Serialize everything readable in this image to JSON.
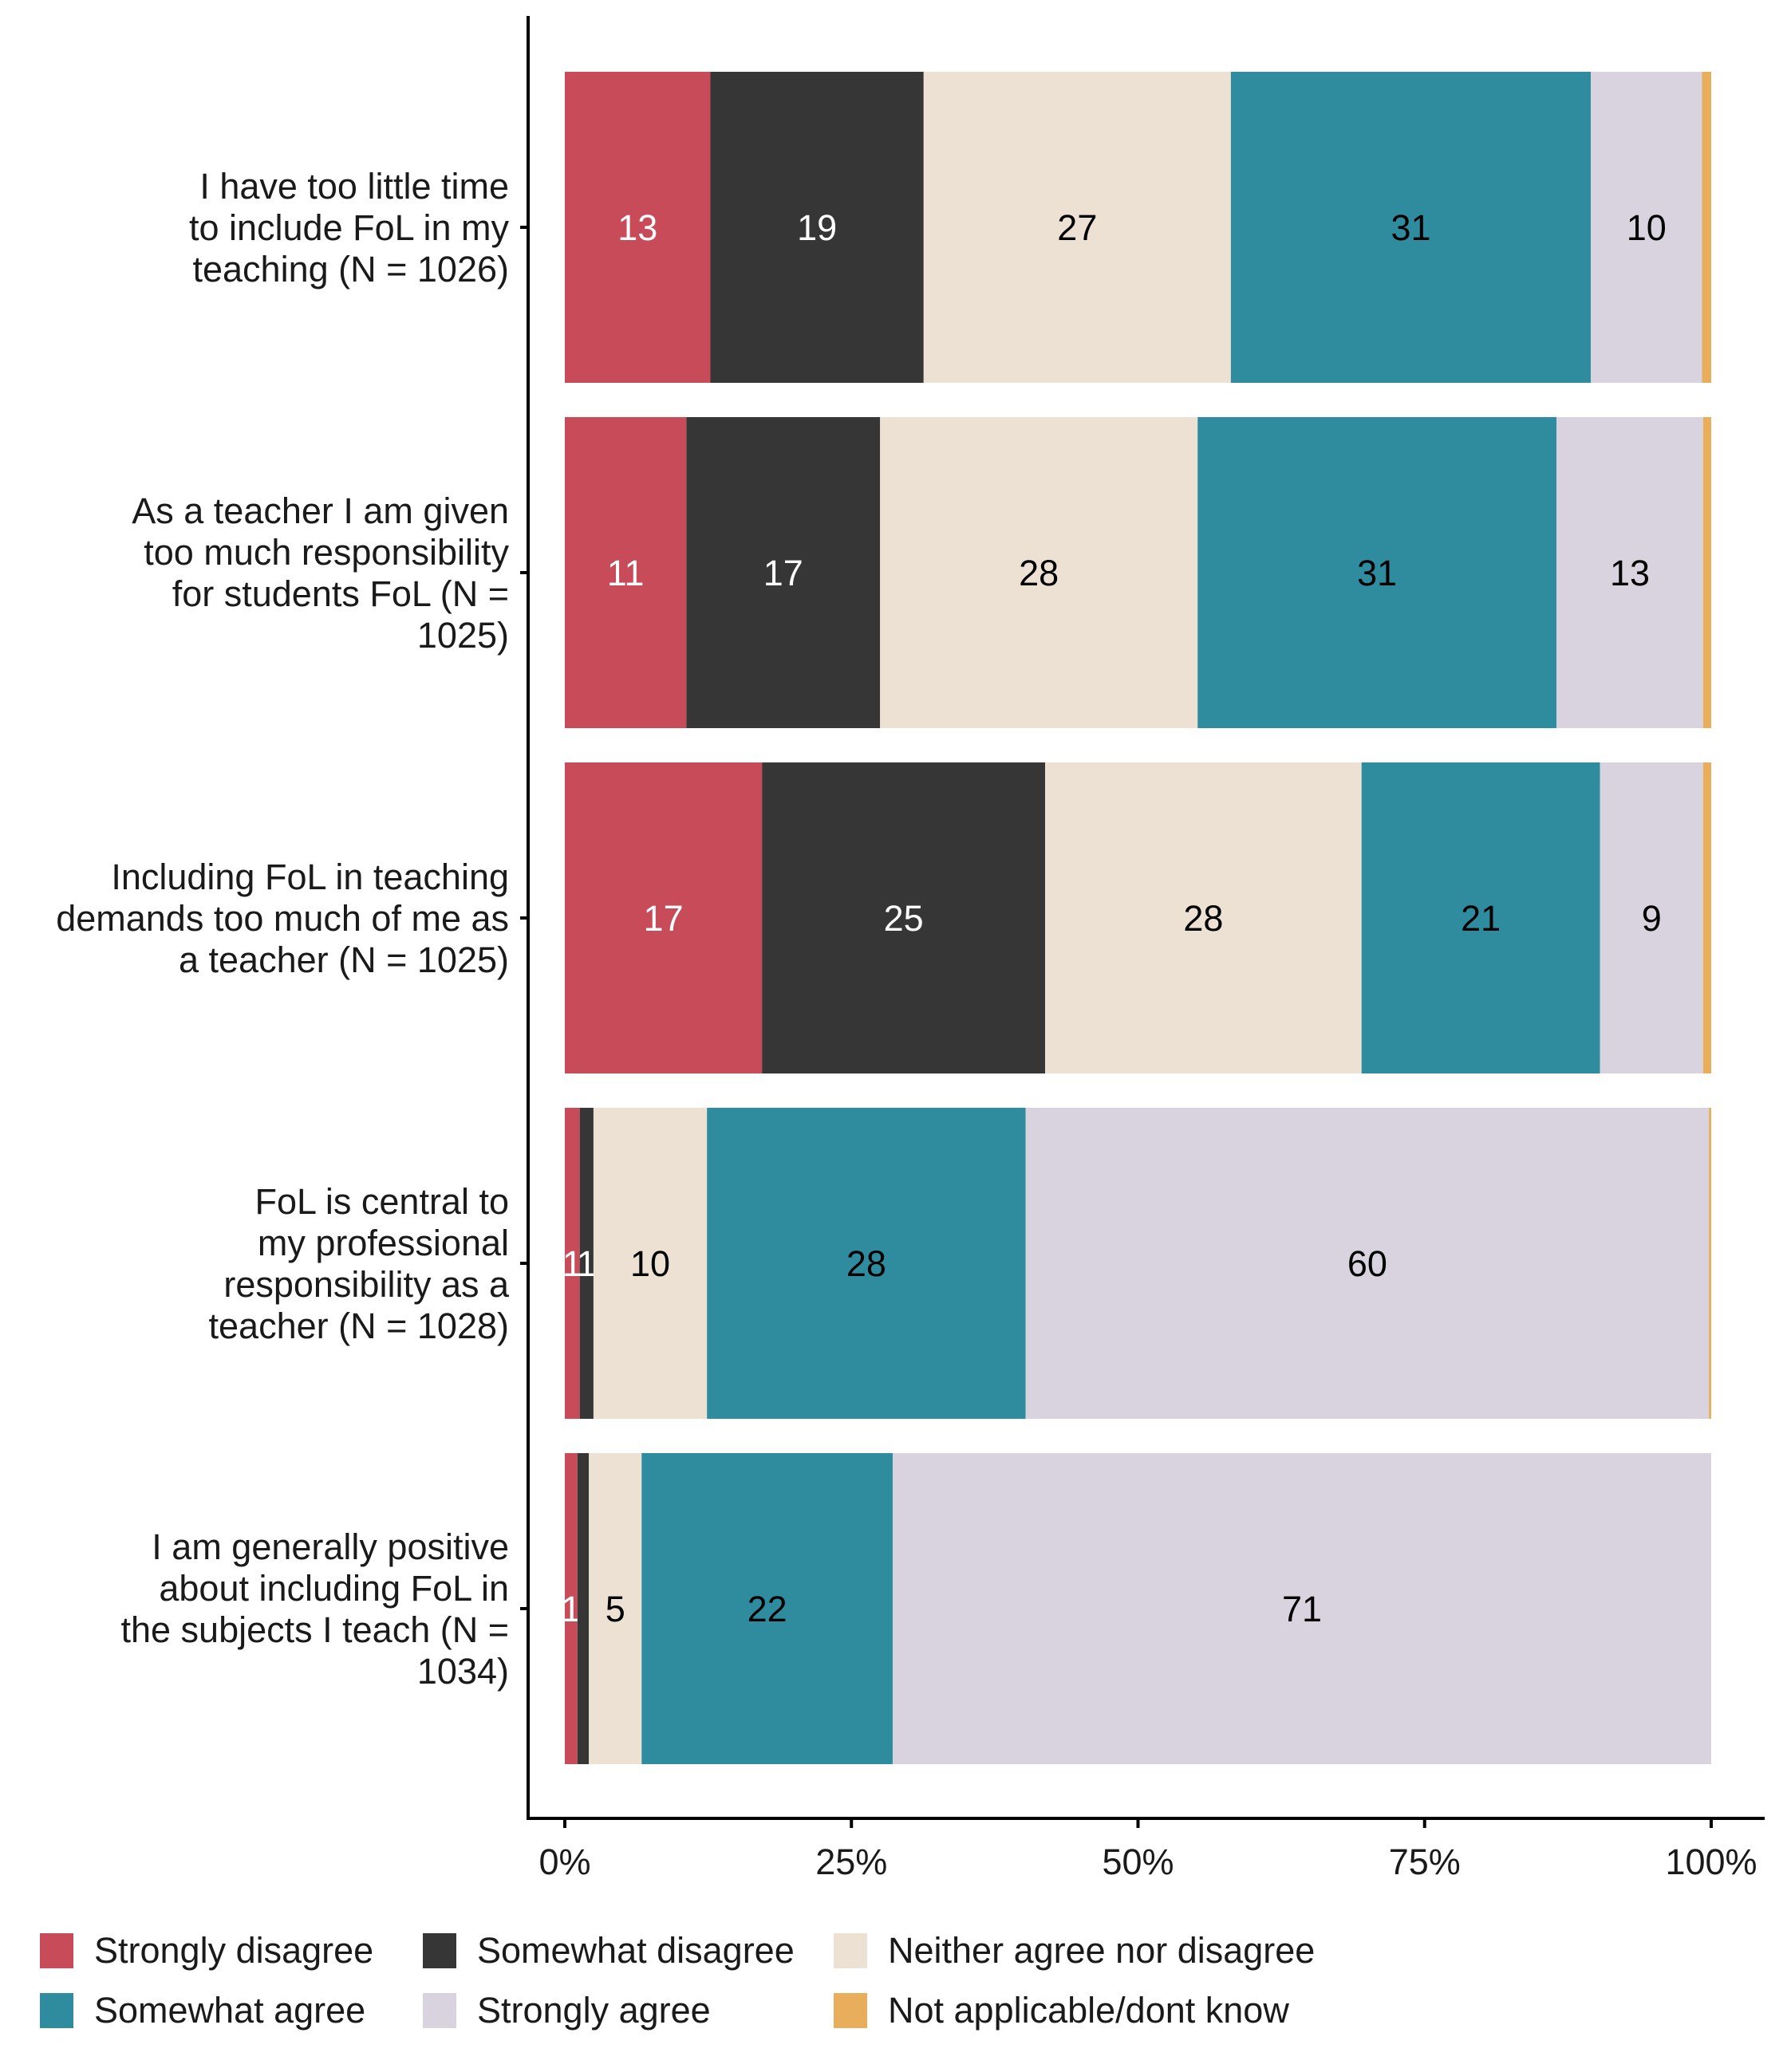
{
  "chart_data": {
    "type": "bar",
    "orientation": "horizontal",
    "stacked": true,
    "title": "",
    "xlabel": "",
    "ylabel": "",
    "xlim": [
      0,
      100
    ],
    "x_ticks": [
      "0%",
      "25%",
      "50%",
      "75%",
      "100%"
    ],
    "x_tick_values": [
      0,
      25,
      50,
      75,
      100
    ],
    "grid": false,
    "legend_position": "bottom",
    "categories": [
      [
        "I have too little time",
        "to include FoL in my",
        "teaching (N = 1026)"
      ],
      [
        "As a teacher I am given",
        "too much responsibility",
        "for students FoL (N =",
        "1025)"
      ],
      [
        "Including FoL in teaching",
        "demands too much of me as",
        "a teacher (N = 1025)"
      ],
      [
        "FoL is central to",
        "my professional",
        "responsibility as a",
        "teacher (N = 1028)"
      ],
      [
        "I am generally positive",
        "about including FoL in",
        "the subjects I teach (N =",
        "1034)"
      ]
    ],
    "series": [
      {
        "name": "Strongly disagree",
        "color": "#C84B5A",
        "label_color": "#ffffff",
        "values": [
          12.7,
          10.6,
          17.2,
          1.3,
          1.1
        ],
        "labels": [
          "13",
          "11",
          "17",
          "1",
          "1"
        ]
      },
      {
        "name": "Somewhat disagree",
        "color": "#363636",
        "label_color": "#ffffff",
        "values": [
          18.6,
          16.9,
          24.7,
          1.2,
          1.0
        ],
        "labels": [
          "19",
          "17",
          "25",
          "1",
          ""
        ]
      },
      {
        "name": "Neither agree nor disagree",
        "color": "#ECE1D3",
        "label_color": "#000000",
        "values": [
          26.8,
          27.7,
          27.6,
          9.9,
          4.6
        ],
        "labels": [
          "27",
          "28",
          "28",
          "10",
          "5"
        ]
      },
      {
        "name": "Somewhat agree",
        "color": "#2E8C9E",
        "label_color": "#000000",
        "values": [
          31.4,
          31.3,
          20.8,
          27.8,
          21.9
        ],
        "labels": [
          "31",
          "31",
          "21",
          "28",
          "22"
        ]
      },
      {
        "name": "Strongly agree",
        "color": "#D9D2DF",
        "label_color": "#000000",
        "values": [
          9.7,
          12.8,
          9.0,
          59.6,
          71.4
        ],
        "labels": [
          "10",
          "13",
          "9",
          "60",
          "71"
        ]
      },
      {
        "name": "Not applicable/dont know",
        "color": "#E8AE5B",
        "label_color": "#000000",
        "values": [
          0.8,
          0.7,
          0.7,
          0.2,
          0.0
        ],
        "labels": [
          "",
          "",
          "",
          "",
          ""
        ]
      }
    ]
  },
  "legend": {
    "rows": [
      [
        "Strongly disagree",
        "Somewhat disagree",
        "Neither agree nor disagree"
      ],
      [
        "Somewhat agree",
        "Strongly agree",
        "Not applicable/dont know"
      ]
    ]
  }
}
